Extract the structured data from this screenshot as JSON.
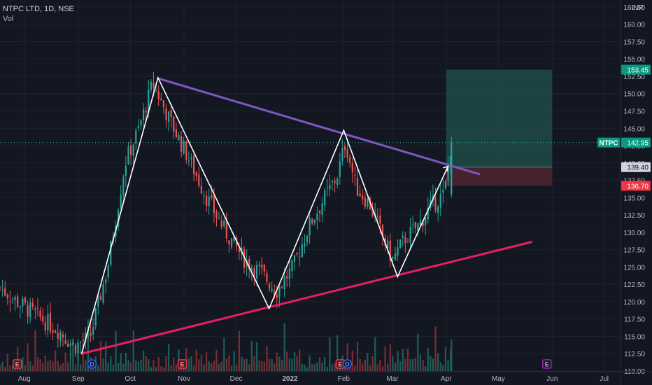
{
  "header": {
    "symbol_line": "NTPC LTD, 1D, NSE",
    "volume_label": "Vol"
  },
  "colors": {
    "background": "#131722",
    "grid": "#1e222d",
    "up": "#26a69a",
    "down": "#ef5350",
    "volume_up": "#1f5e58",
    "volume_down": "#7a2e33",
    "resistance_line": "#7e57c2",
    "support_line": "#e91e63",
    "pattern_line": "#ffffff",
    "target_zone": "#1e4a47",
    "stop_zone": "#4a2430",
    "current_price": "#26a69a",
    "stop_price": "#f23645",
    "entry_price": "#5d606b",
    "event_icon": "#f23645",
    "dividend_icon": "#2962ff"
  },
  "chart_data": {
    "type": "candlestick",
    "ylim": [
      110.0,
      163.5
    ],
    "y_unit_label": "INR",
    "y_ticks": [
      "162.50",
      "160.00",
      "157.50",
      "155.00",
      "152.50",
      "150.00",
      "147.50",
      "145.00",
      "142.50",
      "140.00",
      "137.50",
      "135.00",
      "132.50",
      "130.00",
      "127.50",
      "125.00",
      "122.50",
      "120.00",
      "117.50",
      "115.00",
      "112.50",
      "110.00"
    ],
    "x_ticks": [
      "Aug",
      "Sep",
      "Oct",
      "Nov",
      "Dec",
      "2022",
      "Feb",
      "Mar",
      "Apr",
      "May",
      "Jun",
      "Jul"
    ],
    "x_tick_dates": [
      "2021-08-01",
      "2021-09-01",
      "2021-10-01",
      "2021-11-01",
      "2021-12-01",
      "2022-01-01",
      "2022-02-01",
      "2022-03-01",
      "2022-04-01",
      "2022-05-01",
      "2022-06-01",
      "2022-07-01"
    ],
    "x_range": [
      "2021-07-18",
      "2022-07-10"
    ],
    "price_path": [
      {
        "date": "2021-07-18",
        "price": 122.0
      },
      {
        "date": "2021-07-28",
        "price": 120.0
      },
      {
        "date": "2021-08-08",
        "price": 118.0
      },
      {
        "date": "2021-08-20",
        "price": 116.0
      },
      {
        "date": "2021-08-30",
        "price": 113.5
      },
      {
        "date": "2021-09-08",
        "price": 115.0
      },
      {
        "date": "2021-09-18",
        "price": 125.0
      },
      {
        "date": "2021-09-28",
        "price": 140.0
      },
      {
        "date": "2021-10-06",
        "price": 145.0
      },
      {
        "date": "2021-10-14",
        "price": 151.5
      },
      {
        "date": "2021-10-24",
        "price": 146.0
      },
      {
        "date": "2021-11-03",
        "price": 141.0
      },
      {
        "date": "2021-11-14",
        "price": 135.0
      },
      {
        "date": "2021-11-25",
        "price": 130.0
      },
      {
        "date": "2021-12-06",
        "price": 126.0
      },
      {
        "date": "2021-12-16",
        "price": 124.0
      },
      {
        "date": "2021-12-24",
        "price": 121.5
      },
      {
        "date": "2022-01-03",
        "price": 125.0
      },
      {
        "date": "2022-01-12",
        "price": 131.0
      },
      {
        "date": "2022-01-21",
        "price": 135.0
      },
      {
        "date": "2022-01-28",
        "price": 138.0
      },
      {
        "date": "2022-02-02",
        "price": 143.0
      },
      {
        "date": "2022-02-08",
        "price": 136.5
      },
      {
        "date": "2022-02-16",
        "price": 134.0
      },
      {
        "date": "2022-02-24",
        "price": 129.0
      },
      {
        "date": "2022-03-01",
        "price": 126.0
      },
      {
        "date": "2022-03-08",
        "price": 129.0
      },
      {
        "date": "2022-03-16",
        "price": 131.0
      },
      {
        "date": "2022-03-24",
        "price": 134.0
      },
      {
        "date": "2022-03-31",
        "price": 135.5
      },
      {
        "date": "2022-04-04",
        "price": 142.95
      }
    ],
    "volume_relative": [
      0.12,
      0.2,
      0.08,
      0.35,
      0.15,
      0.1,
      0.22,
      0.4,
      0.18,
      0.3,
      0.12,
      0.5,
      0.2,
      0.15,
      0.65,
      0.25,
      0.3,
      0.12,
      0.45,
      0.2,
      0.35,
      0.15,
      0.6,
      0.28,
      0.18,
      0.22,
      0.4,
      0.15,
      0.3,
      0.5,
      0.2,
      0.25,
      0.12,
      0.38,
      0.18,
      0.7,
      0.25,
      0.2,
      0.3,
      0.15,
      0.45,
      0.22,
      0.55,
      0.18,
      0.3,
      0.2,
      0.62,
      0.25,
      0.35,
      0.15,
      0.4,
      0.28,
      0.2,
      0.75,
      0.3,
      0.22,
      0.18,
      0.45,
      0.25,
      0.35
    ],
    "price_labels": [
      {
        "name": "target-price",
        "price": 153.45,
        "text": "153.45"
      },
      {
        "name": "current-price",
        "price": 142.95,
        "text": "142.95",
        "ticker": "NTPC"
      },
      {
        "name": "entry-price",
        "price": 139.4,
        "text": "139.40"
      },
      {
        "name": "stop-price",
        "price": 136.7,
        "text": "136.70"
      }
    ],
    "position": {
      "start_date": "2022-04-01",
      "end_date": "2022-06-01",
      "entry": 139.4,
      "target": 153.45,
      "stop": 136.7
    },
    "trendlines": [
      {
        "name": "resistance-trendline",
        "from": {
          "date": "2021-10-17",
          "price": 152.2
        },
        "to": {
          "date": "2022-04-20",
          "price": 138.4
        }
      },
      {
        "name": "support-trendline",
        "from": {
          "date": "2021-09-03",
          "price": 112.5
        },
        "to": {
          "date": "2022-05-20",
          "price": 128.6
        }
      }
    ],
    "pattern_path": [
      {
        "date": "2021-09-03",
        "price": 112.5
      },
      {
        "date": "2021-10-17",
        "price": 152.3
      },
      {
        "date": "2021-12-20",
        "price": 119.0
      },
      {
        "date": "2022-02-01",
        "price": 144.7
      },
      {
        "date": "2022-03-04",
        "price": 123.6
      },
      {
        "date": "2022-04-02",
        "price": 139.5
      }
    ],
    "event_markers": [
      {
        "date": "2021-07-28",
        "letter": "E",
        "kind": "earnings"
      },
      {
        "date": "2021-09-09",
        "letter": "D",
        "kind": "dividend"
      },
      {
        "date": "2021-10-31",
        "letter": "E",
        "kind": "earnings"
      },
      {
        "date": "2022-01-30",
        "letter": "E",
        "kind": "earnings"
      },
      {
        "date": "2022-02-03",
        "letter": "D",
        "kind": "dividend"
      },
      {
        "date": "2022-05-29",
        "letter": "E",
        "kind": "earnings-upcoming"
      }
    ]
  }
}
